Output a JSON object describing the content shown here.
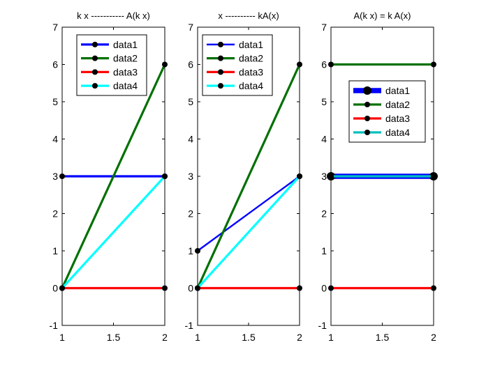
{
  "figure": {
    "background": "#ffffff"
  },
  "chart_data": [
    {
      "type": "line",
      "title": "k x ----------- A(k x)",
      "xlim": [
        1,
        2
      ],
      "ylim": [
        -1,
        7
      ],
      "xticks": [
        1,
        1.5,
        2
      ],
      "xtick_labels": [
        "1",
        "1.5",
        "2"
      ],
      "yticks": [
        -1,
        0,
        1,
        2,
        3,
        4,
        5,
        6,
        7
      ],
      "ytick_labels": [
        "-1",
        "0",
        "1",
        "2",
        "3",
        "4",
        "5",
        "6",
        "7"
      ],
      "legend_position": "top-center",
      "series": [
        {
          "name": "data1",
          "color": "#0000ff",
          "width": "thick",
          "x": [
            1,
            2
          ],
          "y": [
            3,
            3
          ]
        },
        {
          "name": "data2",
          "color": "#007000",
          "width": "thick",
          "x": [
            1,
            2
          ],
          "y": [
            0,
            6
          ]
        },
        {
          "name": "data3",
          "color": "#ff0000",
          "width": "thick",
          "x": [
            1,
            2
          ],
          "y": [
            0,
            0
          ]
        },
        {
          "name": "data4",
          "color": "#00ffff",
          "width": "thick",
          "x": [
            1,
            2
          ],
          "y": [
            0,
            3
          ]
        }
      ]
    },
    {
      "type": "line",
      "title": "x ---------- kA(x)",
      "xlim": [
        1,
        2
      ],
      "ylim": [
        -1,
        7
      ],
      "xticks": [
        1,
        1.5,
        2
      ],
      "xtick_labels": [
        "1",
        "1.5",
        "2"
      ],
      "yticks": [
        -1,
        0,
        1,
        2,
        3,
        4,
        5,
        6,
        7
      ],
      "ytick_labels": [
        "-1",
        "0",
        "1",
        "2",
        "3",
        "4",
        "5",
        "6",
        "7"
      ],
      "legend_position": "top-center",
      "series": [
        {
          "name": "data1",
          "color": "#0000ff",
          "width": "medium",
          "x": [
            1,
            2
          ],
          "y": [
            1,
            3
          ]
        },
        {
          "name": "data2",
          "color": "#007000",
          "width": "thick",
          "x": [
            1,
            2
          ],
          "y": [
            0,
            6
          ]
        },
        {
          "name": "data3",
          "color": "#ff0000",
          "width": "thick",
          "x": [
            1,
            2
          ],
          "y": [
            0,
            0
          ]
        },
        {
          "name": "data4",
          "color": "#00ffff",
          "width": "thick",
          "x": [
            1,
            2
          ],
          "y": [
            0,
            3
          ]
        }
      ]
    },
    {
      "type": "line",
      "title": "A(k x) = k A(x)",
      "xlim": [
        1,
        2
      ],
      "ylim": [
        -1,
        7
      ],
      "xticks": [
        1,
        1.5,
        2
      ],
      "xtick_labels": [
        "1",
        "1.5",
        "2"
      ],
      "yticks": [
        -1,
        0,
        1,
        2,
        3,
        4,
        5,
        6,
        7
      ],
      "ytick_labels": [
        "-1",
        "0",
        "1",
        "2",
        "3",
        "4",
        "5",
        "6",
        "7"
      ],
      "legend_position": "upper-right",
      "series": [
        {
          "name": "data1",
          "color": "#0000ff",
          "width": "extra-thick",
          "x": [
            1,
            2
          ],
          "y": [
            3,
            3
          ]
        },
        {
          "name": "data2",
          "color": "#007000",
          "width": "thick",
          "x": [
            1,
            2
          ],
          "y": [
            6,
            6
          ]
        },
        {
          "name": "data3",
          "color": "#ff0000",
          "width": "thick",
          "x": [
            1,
            2
          ],
          "y": [
            0,
            0
          ]
        },
        {
          "name": "data4",
          "color": "#00c0c0",
          "width": "thick",
          "x": [
            1,
            2
          ],
          "y": [
            3,
            3
          ]
        }
      ]
    }
  ]
}
